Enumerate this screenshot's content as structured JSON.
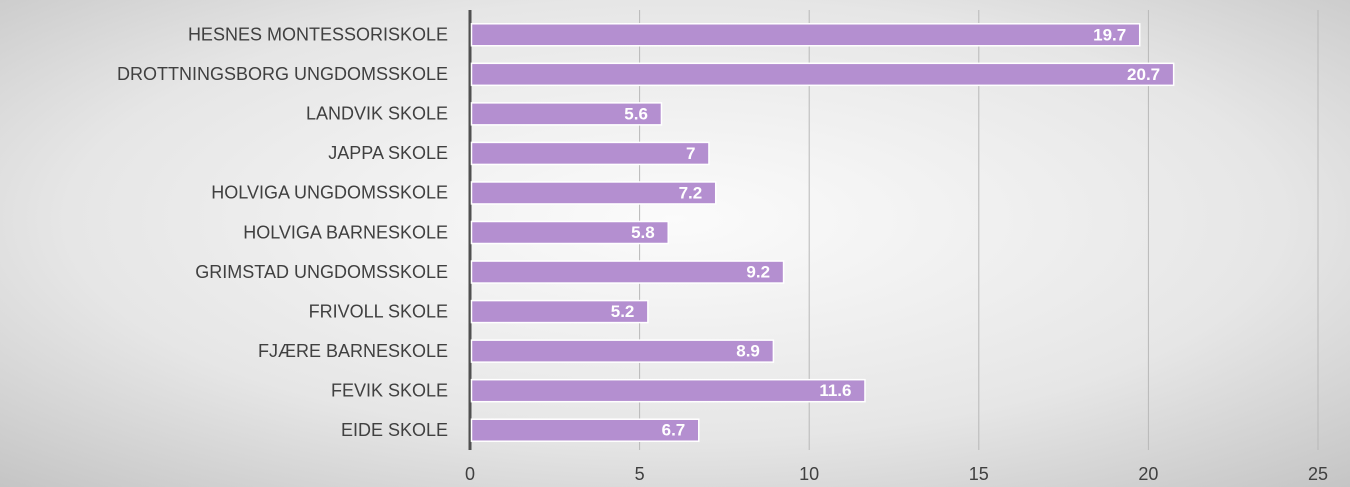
{
  "chart_data": {
    "type": "bar",
    "orientation": "horizontal",
    "categories": [
      "HESNES MONTESSORISKOLE",
      "DROTTNINGSBORG UNGDOMSSKOLE",
      "LANDVIK SKOLE",
      "JAPPA SKOLE",
      "HOLVIGA UNGDOMSSKOLE",
      "HOLVIGA BARNESKOLE",
      "GRIMSTAD UNGDOMSSKOLE",
      "FRIVOLL SKOLE",
      "FJÆRE BARNESKOLE",
      "FEVIK SKOLE",
      "EIDE SKOLE"
    ],
    "values": [
      19.7,
      20.7,
      5.6,
      7,
      7.2,
      5.8,
      9.2,
      5.2,
      8.9,
      11.6,
      6.7
    ],
    "color": "#b48fd0",
    "xlim": [
      0,
      25
    ],
    "xticks": [
      0,
      5,
      10,
      15,
      20,
      25
    ],
    "grid": true
  }
}
